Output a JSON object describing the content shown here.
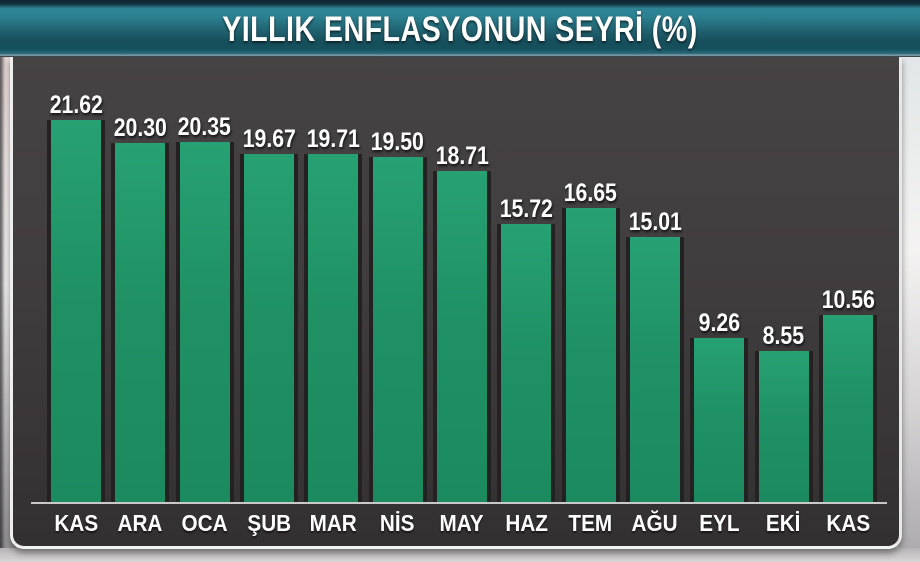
{
  "title_bar": {
    "title": "YILLIK ENFLASYONUN SEYRİ (%)"
  },
  "chart_data": {
    "type": "bar",
    "title": "YILLIK ENFLASYONUN SEYRİ (%)",
    "categories": [
      "KAS",
      "ARA",
      "OCA",
      "ŞUB",
      "MAR",
      "NİS",
      "MAY",
      "HAZ",
      "TEM",
      "AĞU",
      "EYL",
      "EKİ",
      "KAS"
    ],
    "values": [
      21.62,
      20.3,
      20.35,
      19.67,
      19.71,
      19.5,
      18.71,
      15.72,
      16.65,
      15.01,
      9.26,
      8.55,
      10.56
    ],
    "value_labels": [
      "21.62",
      "20.30",
      "20.35",
      "19.67",
      "19.71",
      "19.50",
      "18.71",
      "15.72",
      "16.65",
      "15.01",
      "9.26",
      "8.55",
      "10.56"
    ],
    "xlabel": "",
    "ylabel": "",
    "ylim": [
      0,
      24.9
    ],
    "grid": false,
    "legend": false,
    "data_labels_position": "above-bars",
    "colors": {
      "bar_fill": "#1f9165",
      "bar_side_shadow": "#242122",
      "panel_background": "#3e3b3c",
      "baseline": "#c9c9c9",
      "label_text": "#ffffff",
      "banner_teal": "#20606e",
      "banner_text": "#ffffff"
    }
  }
}
